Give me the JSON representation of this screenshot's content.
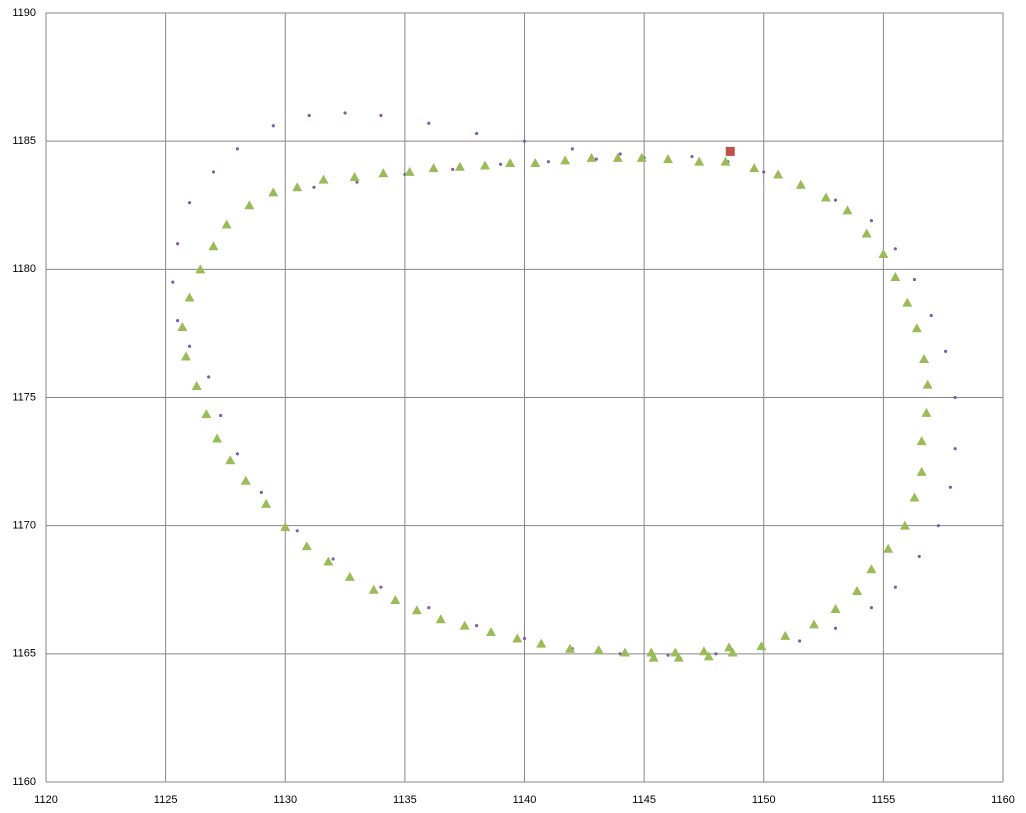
{
  "chart_data": {
    "type": "scatter",
    "xlim": [
      1120,
      1160
    ],
    "xticks": [
      1120,
      1125,
      1130,
      1135,
      1140,
      1145,
      1150,
      1155,
      1160
    ],
    "ylim": [
      1160,
      1190
    ],
    "yticks": [
      1160,
      1165,
      1170,
      1175,
      1180,
      1185,
      1190
    ],
    "grid": true,
    "series": [
      {
        "color": "#7b5fa8",
        "marker": "dot",
        "x": [
          1131.2,
          1133,
          1135,
          1137,
          1139,
          1141,
          1143,
          1145,
          1147,
          1148.5,
          1150,
          1151.5,
          1153,
          1154.5,
          1155.5,
          1156.3,
          1157,
          1157.6,
          1158,
          1158,
          1157.8,
          1157.3,
          1156.5,
          1155.5,
          1154.5,
          1153,
          1151.5,
          1150,
          1148,
          1146,
          1144,
          1142,
          1140,
          1138,
          1136,
          1134,
          1132,
          1130.5,
          1129,
          1128,
          1127.3,
          1126.8,
          1126,
          1125.5,
          1125.3,
          1125.5,
          1126,
          1127,
          1128,
          1129.5,
          1131,
          1132.5,
          1134,
          1136,
          1138,
          1140,
          1142,
          1144
        ],
        "values": [
          1183.2,
          1183.4,
          1183.7,
          1183.9,
          1184.1,
          1184.2,
          1184.3,
          1184.35,
          1184.4,
          1184.2,
          1183.8,
          1183.2,
          1182.7,
          1181.9,
          1180.8,
          1179.6,
          1178.2,
          1176.8,
          1175,
          1173,
          1171.5,
          1170,
          1168.8,
          1167.6,
          1166.8,
          1166,
          1165.5,
          1165.2,
          1165,
          1164.95,
          1165,
          1165.2,
          1165.6,
          1166.1,
          1166.8,
          1167.6,
          1168.7,
          1169.8,
          1171.3,
          1172.8,
          1174.3,
          1175.8,
          1177,
          1178,
          1179.5,
          1181,
          1182.6,
          1183.8,
          1184.7,
          1185.6,
          1186,
          1186.1,
          1186,
          1185.7,
          1185.3,
          1185,
          1184.7,
          1184.5
        ]
      },
      {
        "color": "#9bbb59",
        "marker": "triangle",
        "x": [
          1130.5,
          1131.6,
          1132.9,
          1134.1,
          1135.2,
          1136.2,
          1137.3,
          1138.35,
          1139.4,
          1140.45,
          1141.7,
          1142.8,
          1143.9,
          1144.9,
          1146.0,
          1147.3,
          1148.4,
          1149.6,
          1150.6,
          1151.55,
          1152.6,
          1153.5,
          1154.3,
          1155.0,
          1155.5,
          1156.0,
          1156.4,
          1156.7,
          1156.85,
          1156.8,
          1156.6,
          1156.6,
          1156.3,
          1155.9,
          1155.2,
          1154.5,
          1153.9,
          1153.0,
          1152.1,
          1150.9,
          1149.9,
          1148.7,
          1148.55,
          1147.7,
          1147.5,
          1146.45,
          1146.3,
          1145.4,
          1145.3,
          1144.2,
          1143.1,
          1141.9,
          1140.7,
          1139.7,
          1138.6,
          1137.5,
          1136.5,
          1135.5,
          1134.6,
          1133.7,
          1132.7,
          1131.8,
          1130.9,
          1130.0,
          1129.2,
          1128.35,
          1127.7,
          1127.15,
          1126.7,
          1126.3,
          1125.85,
          1125.7,
          1126.0,
          1126.45,
          1127.0,
          1127.55,
          1128.5,
          1129.5
        ],
        "values": [
          1183.2,
          1183.5,
          1183.6,
          1183.75,
          1183.8,
          1183.95,
          1184.0,
          1184.05,
          1184.15,
          1184.15,
          1184.25,
          1184.35,
          1184.35,
          1184.35,
          1184.3,
          1184.2,
          1184.2,
          1183.95,
          1183.7,
          1183.3,
          1182.8,
          1182.3,
          1181.4,
          1180.6,
          1179.7,
          1178.7,
          1177.7,
          1176.5,
          1175.5,
          1174.4,
          1173.3,
          1172.1,
          1171.1,
          1170.0,
          1169.1,
          1168.3,
          1167.45,
          1166.75,
          1166.15,
          1165.7,
          1165.3,
          1165.05,
          1165.25,
          1164.9,
          1165.1,
          1164.85,
          1165.05,
          1164.85,
          1165.05,
          1165.05,
          1165.15,
          1165.2,
          1165.4,
          1165.6,
          1165.85,
          1166.1,
          1166.35,
          1166.7,
          1167.1,
          1167.5,
          1168.0,
          1168.6,
          1169.2,
          1169.95,
          1170.85,
          1171.75,
          1172.55,
          1173.4,
          1174.35,
          1175.45,
          1176.6,
          1177.75,
          1178.9,
          1180.0,
          1180.9,
          1181.75,
          1182.5,
          1183.0
        ]
      },
      {
        "color": "#c0504d",
        "marker": "square",
        "x": [
          1148.6
        ],
        "values": [
          1184.6
        ]
      }
    ]
  }
}
